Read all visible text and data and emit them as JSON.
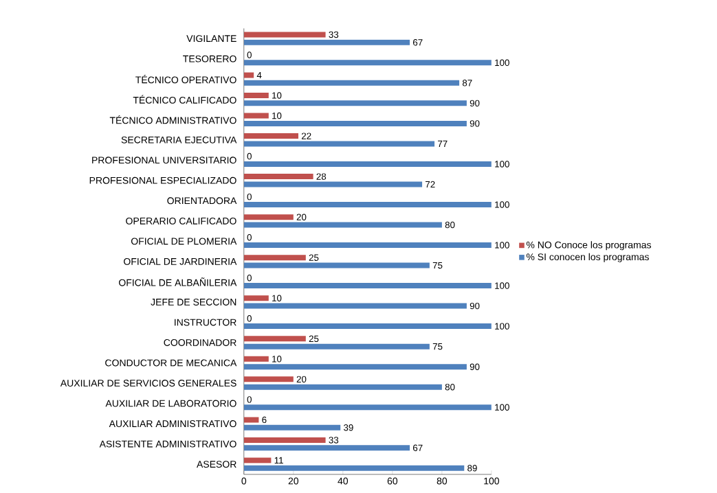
{
  "chart_data": {
    "type": "bar",
    "orientation": "horizontal",
    "categories": [
      "VIGILANTE",
      "TESORERO",
      "TÉCNICO OPERATIVO",
      "TÉCNICO CALIFICADO",
      "TÉCNICO ADMINISTRATIVO",
      "SECRETARIA EJECUTIVA",
      "PROFESIONAL UNIVERSITARIO",
      "PROFESIONAL ESPECIALIZADO",
      "ORIENTADORA",
      "OPERARIO CALIFICADO",
      "OFICIAL DE PLOMERIA",
      "OFICIAL DE JARDINERIA",
      "OFICIAL DE ALBAÑILERIA",
      "JEFE DE SECCION",
      "INSTRUCTOR",
      "COORDINADOR",
      "CONDUCTOR DE MECANICA",
      "AUXILIAR DE SERVICIOS GENERALES",
      "AUXILIAR DE LABORATORIO",
      "AUXILIAR ADMINISTRATIVO",
      "ASISTENTE ADMINISTRATIVO",
      "ASESOR"
    ],
    "series": [
      {
        "name": "% NO Conoce los programas",
        "color": "#c0504d",
        "values": [
          33,
          0,
          4,
          10,
          10,
          22,
          0,
          28,
          0,
          20,
          0,
          25,
          0,
          10,
          0,
          25,
          10,
          20,
          0,
          6,
          33,
          11
        ]
      },
      {
        "name": "% SI conocen los programas",
        "color": "#4f81bd",
        "values": [
          67,
          100,
          87,
          90,
          90,
          77,
          100,
          72,
          100,
          80,
          100,
          75,
          100,
          90,
          100,
          75,
          90,
          80,
          100,
          39,
          67,
          89
        ]
      }
    ],
    "xlim": [
      0,
      100
    ],
    "xticks": [
      0,
      20,
      40,
      60,
      80,
      100
    ],
    "data_labels": true,
    "legend": "right"
  }
}
